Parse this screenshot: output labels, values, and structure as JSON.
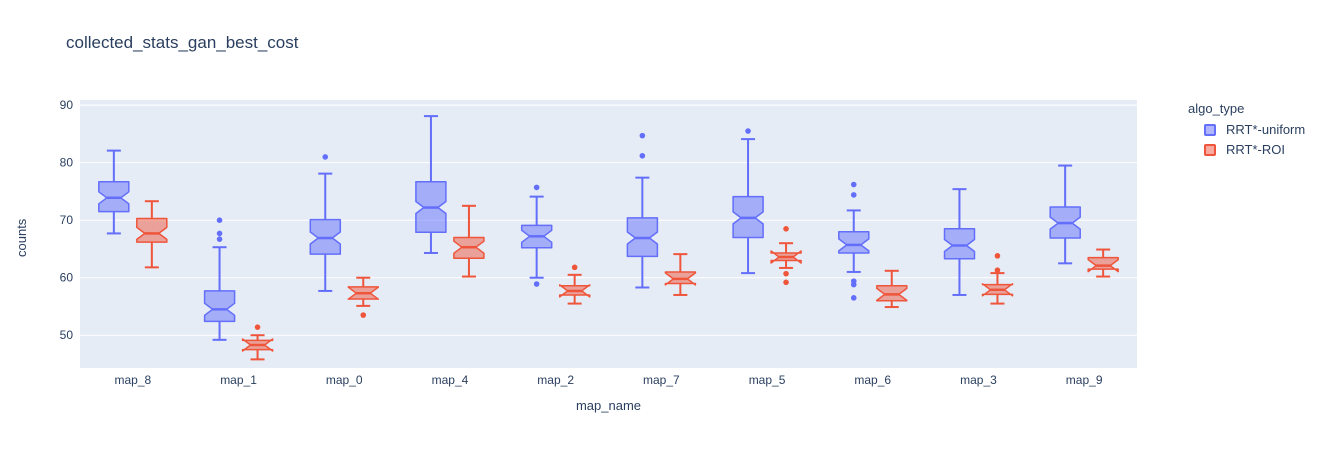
{
  "title": "collected_stats_gan_best_cost",
  "colors": {
    "plot_background": "#E5ECF6",
    "gridline": "#FFFFFF",
    "text": "#2A3F5F",
    "series_uniform": "#636EFA",
    "series_roi": "#EF553B"
  },
  "legend": {
    "title": "algo_type",
    "items": [
      {
        "label": "RRT*-uniform",
        "color": "#636EFA"
      },
      {
        "label": "RRT*-ROI",
        "color": "#EF553B"
      }
    ]
  },
  "chart_data": {
    "type": "box",
    "notched": true,
    "title": "collected_stats_gan_best_cost",
    "xlabel": "map_name",
    "ylabel": "counts",
    "ylim": [
      44.3,
      90.9
    ],
    "yticks": [
      50,
      60,
      70,
      80,
      90
    ],
    "grid": true,
    "legend_position": "right",
    "categories": [
      "map_8",
      "map_1",
      "map_0",
      "map_4",
      "map_2",
      "map_7",
      "map_5",
      "map_6",
      "map_3",
      "map_9"
    ],
    "series": [
      {
        "name": "RRT*-uniform",
        "color": "#636EFA",
        "boxes": [
          {
            "whislo": 67.7,
            "q1": 71.5,
            "med": 73.9,
            "q3": 76.7,
            "whishi": 82.1,
            "outliers": []
          },
          {
            "whislo": 49.2,
            "q1": 52.4,
            "med": 54.5,
            "q3": 57.7,
            "whishi": 65.3,
            "outliers": [
              66.7,
              67.7,
              70.0
            ]
          },
          {
            "whislo": 57.7,
            "q1": 64.1,
            "med": 66.9,
            "q3": 70.1,
            "whishi": 78.1,
            "outliers": [
              81.0
            ]
          },
          {
            "whislo": 64.3,
            "q1": 67.9,
            "med": 72.2,
            "q3": 76.7,
            "whishi": 88.1,
            "outliers": []
          },
          {
            "whislo": 60.0,
            "q1": 65.2,
            "med": 67.2,
            "q3": 69.1,
            "whishi": 74.1,
            "outliers": [
              75.7,
              58.9
            ]
          },
          {
            "whislo": 58.3,
            "q1": 63.7,
            "med": 66.9,
            "q3": 70.4,
            "whishi": 77.4,
            "outliers": [
              84.7,
              81.2
            ]
          },
          {
            "whislo": 60.8,
            "q1": 67.0,
            "med": 70.4,
            "q3": 74.1,
            "whishi": 84.1,
            "outliers": [
              85.5
            ]
          },
          {
            "whislo": 61.0,
            "q1": 64.3,
            "med": 65.7,
            "q3": 68.0,
            "whishi": 71.7,
            "outliers": [
              76.2,
              74.4,
              59.4,
              58.8,
              56.5
            ]
          },
          {
            "whislo": 57.0,
            "q1": 63.3,
            "med": 65.6,
            "q3": 68.5,
            "whishi": 75.4,
            "outliers": []
          },
          {
            "whislo": 62.5,
            "q1": 66.9,
            "med": 69.5,
            "q3": 72.3,
            "whishi": 79.5,
            "outliers": []
          }
        ]
      },
      {
        "name": "RRT*-ROI",
        "color": "#EF553B",
        "boxes": [
          {
            "whislo": 61.8,
            "q1": 66.2,
            "med": 67.7,
            "q3": 70.3,
            "whishi": 73.3,
            "outliers": []
          },
          {
            "whislo": 45.8,
            "q1": 47.5,
            "med": 48.3,
            "q3": 49.1,
            "whishi": 50.0,
            "outliers": [
              51.4
            ]
          },
          {
            "whislo": 55.1,
            "q1": 56.3,
            "med": 57.3,
            "q3": 58.4,
            "whishi": 60.0,
            "outliers": [
              53.5
            ]
          },
          {
            "whislo": 60.2,
            "q1": 63.4,
            "med": 65.3,
            "q3": 67.0,
            "whishi": 72.5,
            "outliers": []
          },
          {
            "whislo": 55.5,
            "q1": 57.0,
            "med": 57.7,
            "q3": 58.6,
            "whishi": 60.5,
            "outliers": [
              61.8
            ]
          },
          {
            "whislo": 57.0,
            "q1": 59.0,
            "med": 59.8,
            "q3": 61.0,
            "whishi": 64.1,
            "outliers": []
          },
          {
            "whislo": 61.7,
            "q1": 63.0,
            "med": 63.6,
            "q3": 64.3,
            "whishi": 66.0,
            "outliers": [
              68.5,
              60.7,
              59.2
            ]
          },
          {
            "whislo": 54.9,
            "q1": 56.0,
            "med": 57.1,
            "q3": 58.6,
            "whishi": 61.2,
            "outliers": []
          },
          {
            "whislo": 55.5,
            "q1": 57.1,
            "med": 57.9,
            "q3": 58.8,
            "whishi": 60.8,
            "outliers": [
              63.8,
              61.3
            ]
          },
          {
            "whislo": 60.2,
            "q1": 61.5,
            "med": 62.1,
            "q3": 63.5,
            "whishi": 64.9,
            "outliers": []
          }
        ]
      }
    ]
  }
}
